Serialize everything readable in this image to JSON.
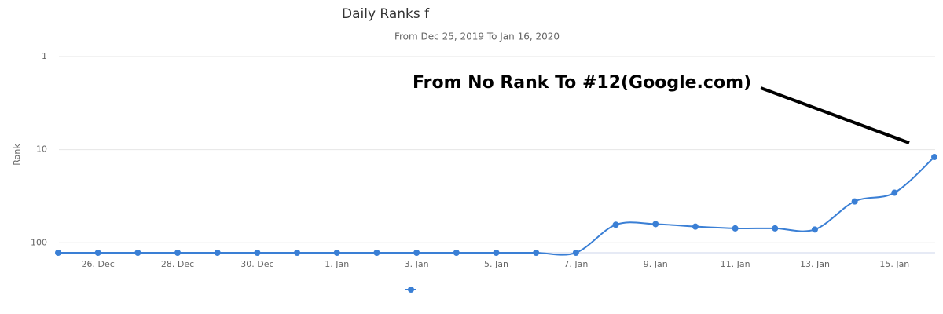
{
  "chart_data": {
    "type": "line",
    "title": "Daily Ranks f",
    "subtitle": "From Dec 25, 2019 To Jan 16, 2020",
    "y_label": "Rank",
    "annotation": "From No Rank To #12(Google.com)",
    "categories": [
      null,
      "26. Dec",
      null,
      "28. Dec",
      null,
      "30. Dec",
      null,
      "1. Jan",
      null,
      "3. Jan",
      null,
      "5. Jan",
      null,
      "7. Jan",
      null,
      "9. Jan",
      null,
      "11. Jan",
      null,
      "13. Jan",
      null,
      "15. Jan",
      null
    ],
    "series": [
      {
        "color": "#3a7fd5",
        "values": [
          128,
          128,
          128,
          128,
          128,
          128,
          128,
          128,
          128,
          128,
          128,
          128,
          128,
          128,
          64,
          63,
          67,
          70,
          70,
          72,
          36,
          29,
          12
        ]
      }
    ],
    "ylim": [
      1,
      128
    ],
    "yticks": [
      1,
      10,
      100
    ],
    "log_scale": true,
    "reversed_y": true,
    "grid": true
  }
}
